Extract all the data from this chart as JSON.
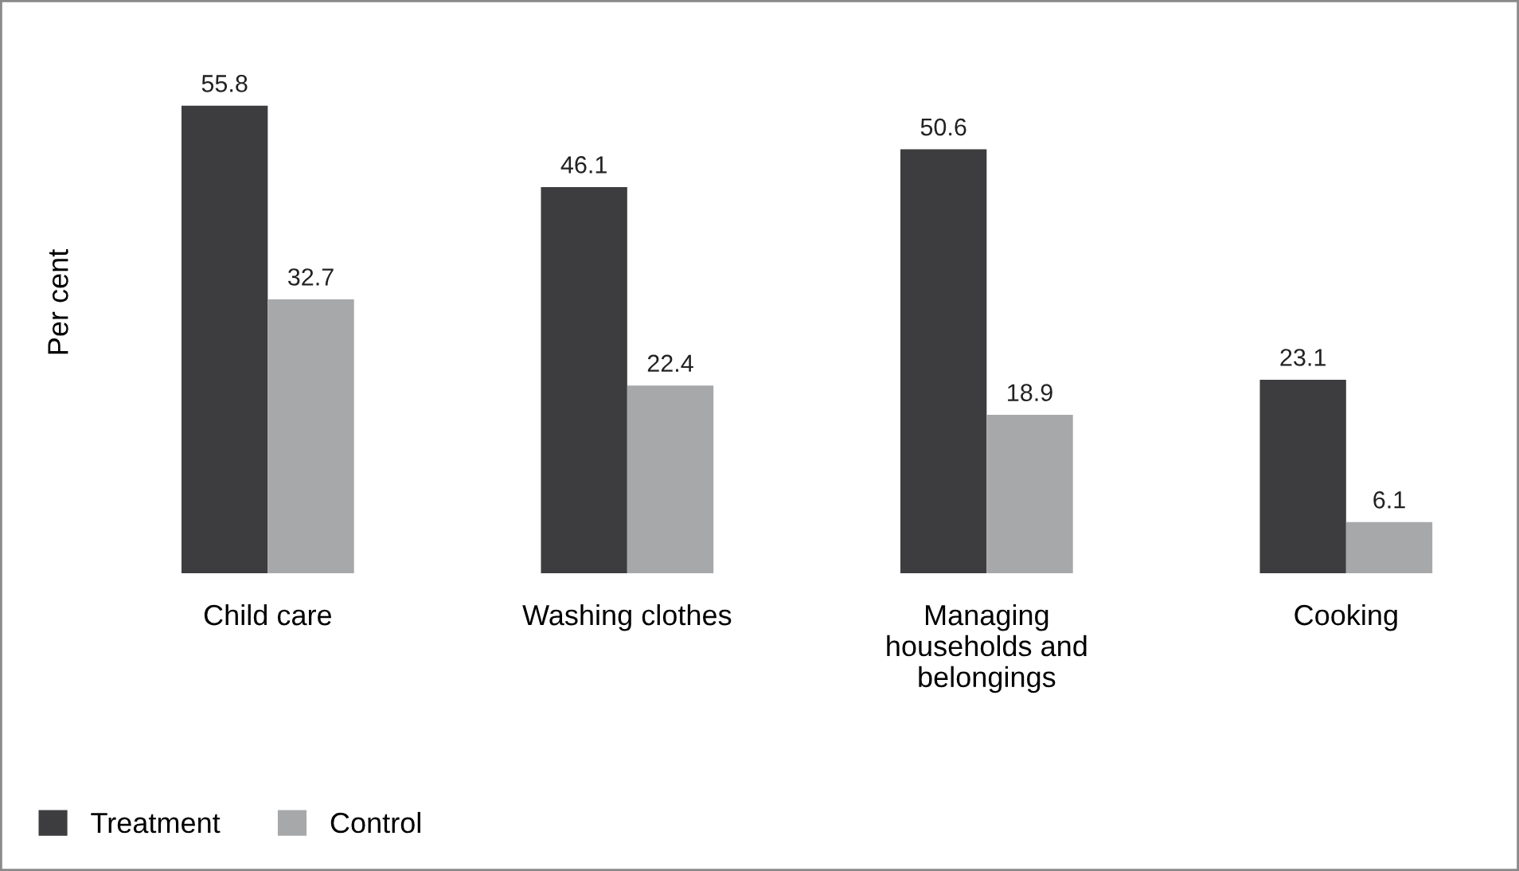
{
  "chart_data": {
    "type": "bar",
    "ylabel": "Per cent",
    "categories": [
      "Child care",
      "Washing clothes",
      "Managing\nhouseholds and\nbelongings",
      "Cooking"
    ],
    "series": [
      {
        "name": "Treatment",
        "color": "#3d3d3f",
        "values": [
          55.8,
          46.1,
          50.6,
          23.1
        ]
      },
      {
        "name": "Control",
        "color": "#a7a8aa",
        "values": [
          32.7,
          22.4,
          18.9,
          6.1
        ]
      }
    ],
    "data_labels": true,
    "legend": "bottom left",
    "grid": false
  }
}
